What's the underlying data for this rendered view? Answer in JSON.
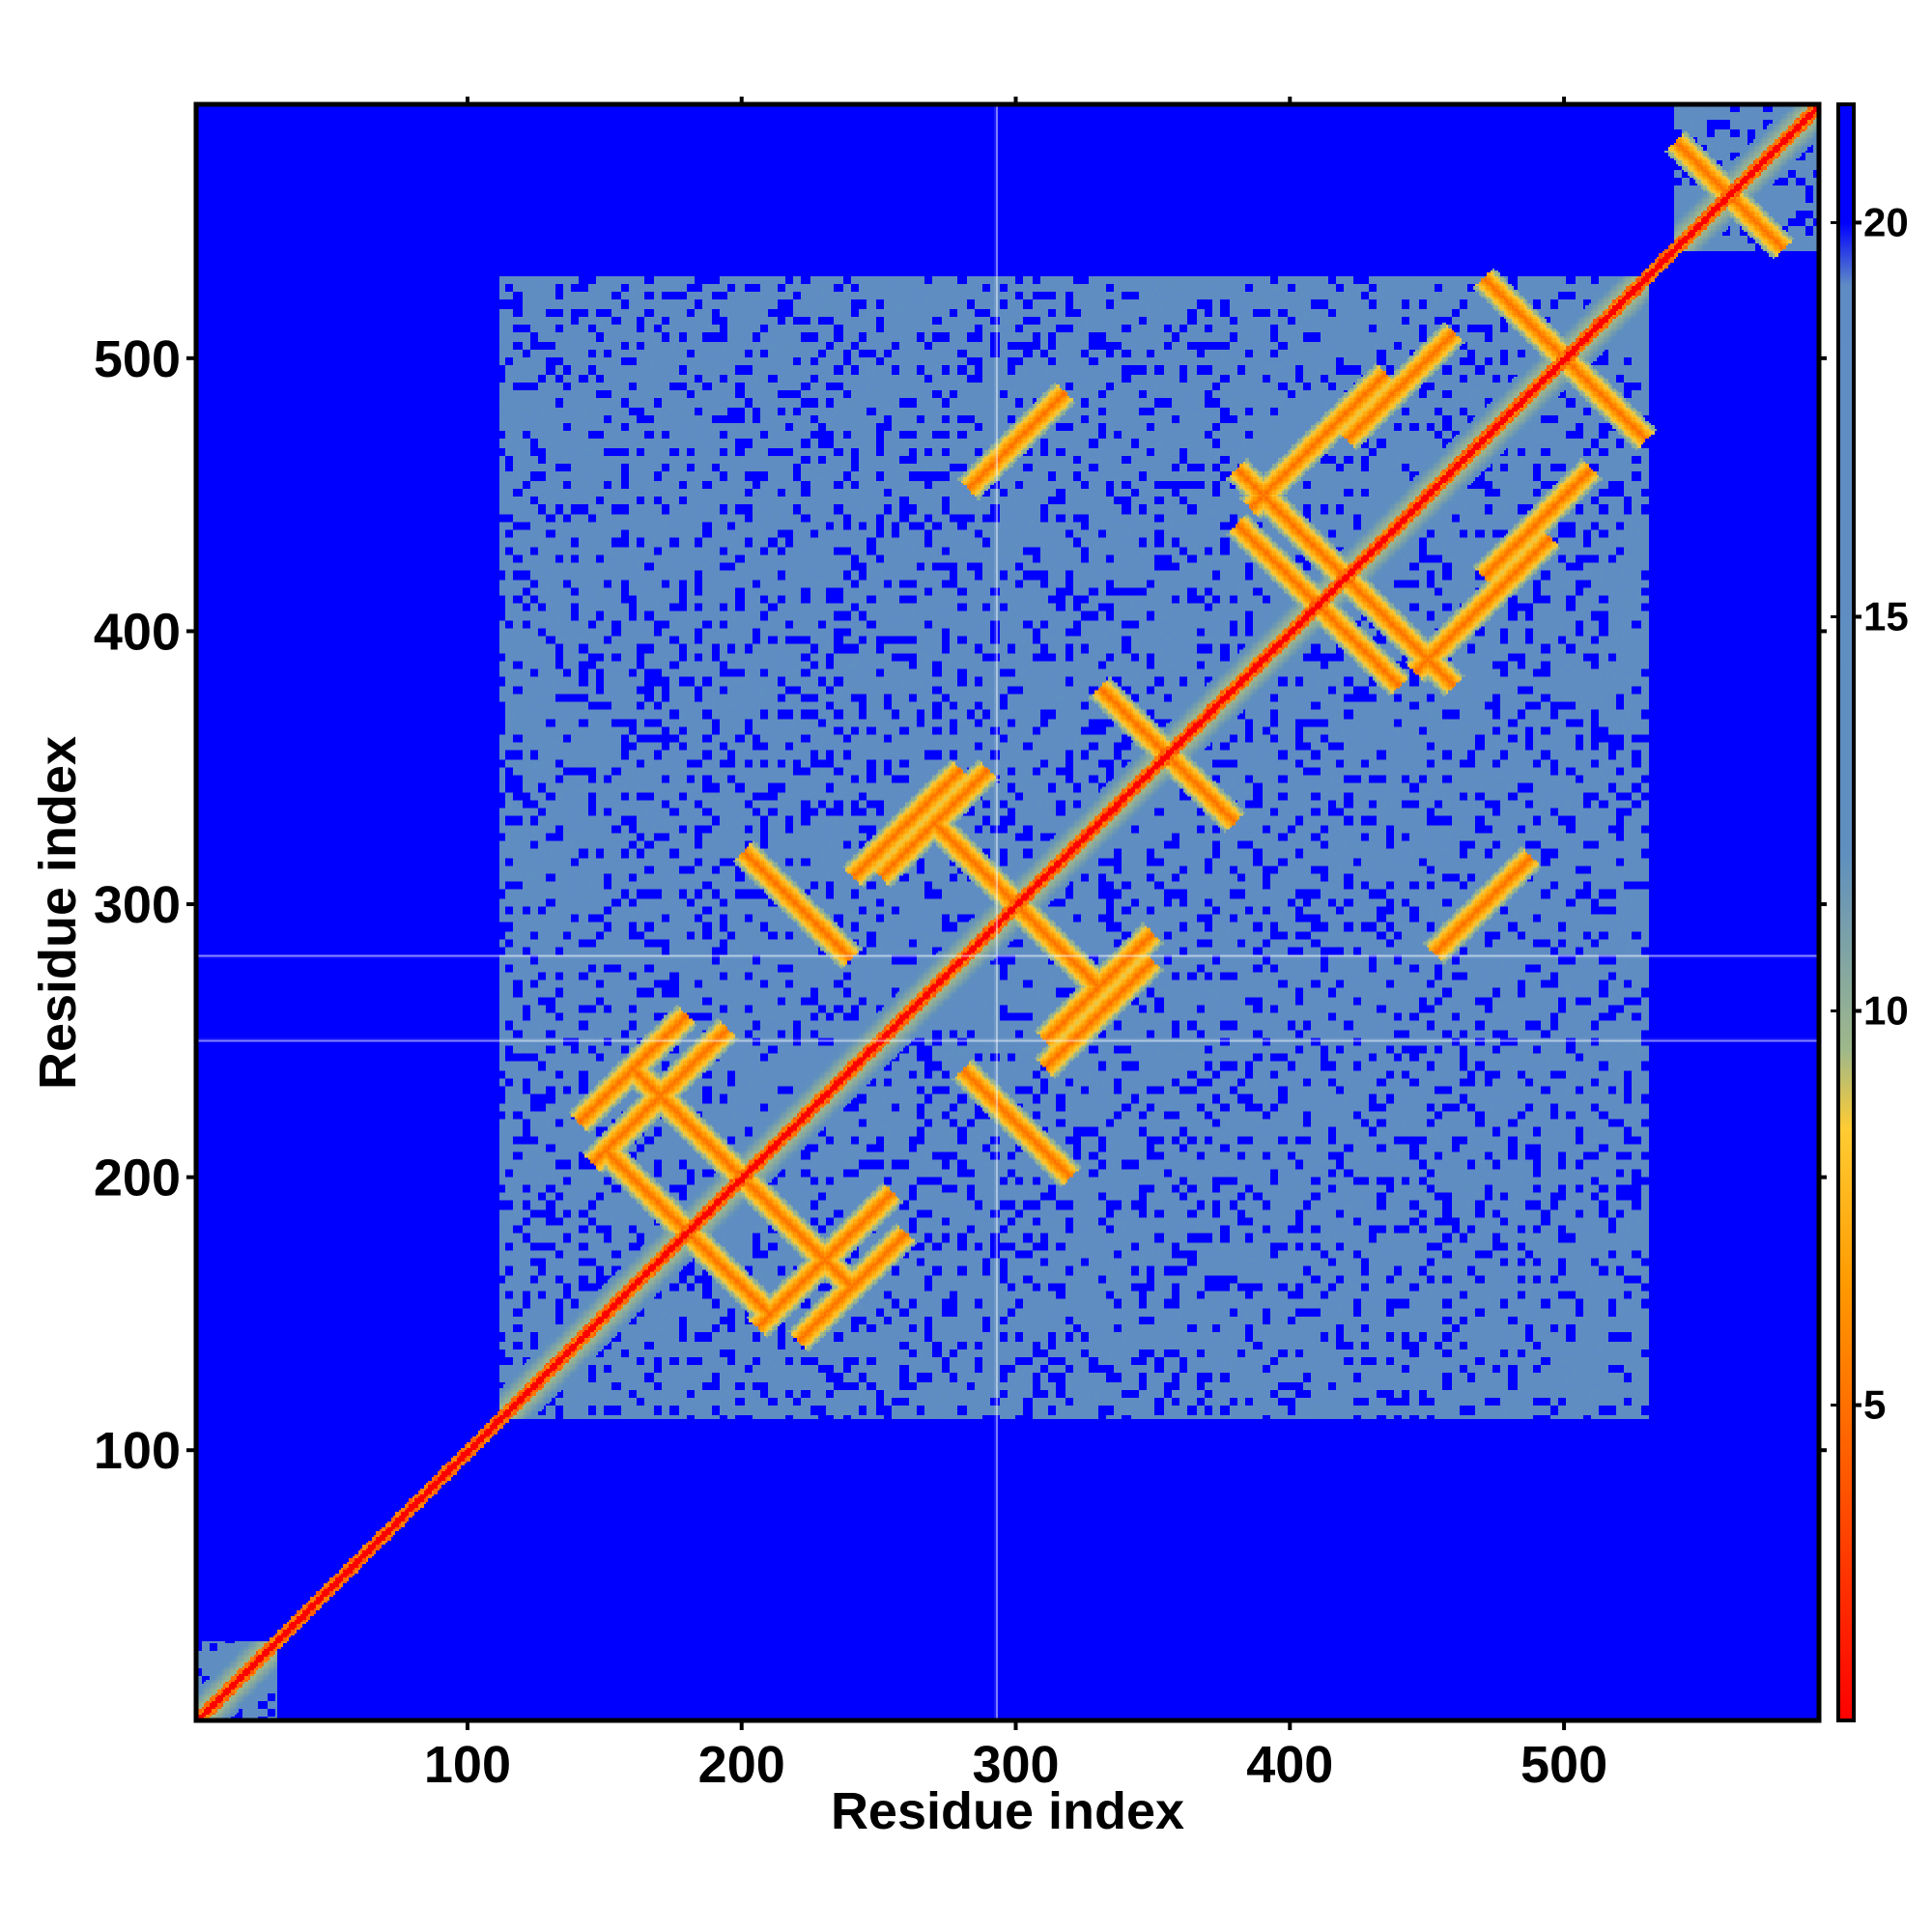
{
  "chart_data": {
    "type": "heatmap",
    "title": "",
    "xlabel": "Residue index",
    "ylabel": "Residue index",
    "xlim": [
      1,
      593
    ],
    "ylim": [
      1,
      593
    ],
    "x_ticks": [
      100,
      200,
      300,
      400,
      500
    ],
    "y_ticks": [
      100,
      200,
      300,
      400,
      500
    ],
    "colorbar": {
      "ticks": [
        5,
        10,
        15,
        20
      ],
      "range": [
        1,
        21.5
      ],
      "stops": [
        {
          "value": 1,
          "color": "#ff0000"
        },
        {
          "value": 4,
          "color": "#ff5500"
        },
        {
          "value": 6.5,
          "color": "#ff9900"
        },
        {
          "value": 8.5,
          "color": "#ffcc33"
        },
        {
          "value": 9.5,
          "color": "#9fb88a"
        },
        {
          "value": 12,
          "color": "#5f8fbf"
        },
        {
          "value": 19.2,
          "color": "#5f8bc4"
        },
        {
          "value": 20,
          "color": "#0000ff"
        },
        {
          "value": 21.5,
          "color": "#0000ff"
        }
      ]
    },
    "description_values": {
      "background_distance": 21,
      "domain_distance": 15,
      "diagonal_distance": 1,
      "contact_distance": 7
    },
    "domains": [
      {
        "start": 112,
        "end": 530
      },
      {
        "start": 540,
        "end": 593
      },
      {
        "start": 1,
        "end": 30
      }
    ],
    "missing_residues": [
      {
        "axis": "x",
        "residue": 293
      },
      {
        "axis": "y",
        "residue": 281
      },
      {
        "axis": "y",
        "residue": 250
      }
    ],
    "colors": {
      "background": "#0000ff",
      "domain": "#5f8bc4",
      "diagonal": "#ff0000",
      "contact_core": "#ff6600",
      "contact_halo": "#e8b44a",
      "gridline": "#ffffff"
    }
  }
}
